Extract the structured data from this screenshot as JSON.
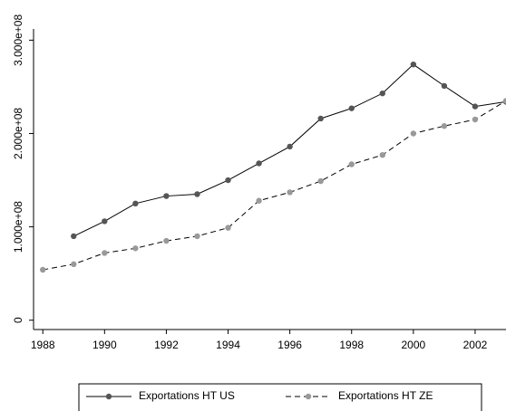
{
  "chart_data": {
    "type": "line",
    "x": [
      1988,
      1989,
      1990,
      1991,
      1992,
      1993,
      1994,
      1995,
      1996,
      1997,
      1998,
      1999,
      2000,
      2001,
      2002,
      2003
    ],
    "series": [
      {
        "name": "Exportations HT US",
        "color": "#555555",
        "linestyle": "solid",
        "values": [
          null,
          90000000,
          106000000,
          125000000,
          133000000,
          135000000,
          150000000,
          168000000,
          186000000,
          216000000,
          227000000,
          243000000,
          274000000,
          251000000,
          229000000,
          234000000
        ]
      },
      {
        "name": "Exportations HT ZE",
        "color": "#999999",
        "linestyle": "dashed",
        "values": [
          54000000,
          60000000,
          72000000,
          77000000,
          85000000,
          90000000,
          99000000,
          128000000,
          137000000,
          149000000,
          167000000,
          177000000,
          200000000,
          208000000,
          215000000,
          235000000
        ]
      }
    ],
    "xlim": [
      1987.7,
      2003
    ],
    "xticks": [
      1988,
      1990,
      1992,
      1994,
      1996,
      1998,
      2000,
      2002
    ],
    "ylim": [
      -10000000,
      312000000
    ],
    "yticks": [
      0,
      {
        "value": 100000000,
        "label": "1.000e+08"
      },
      {
        "value": 200000000,
        "label": "2.000e+08"
      },
      {
        "value": 300000000,
        "label": "3.000e+08"
      }
    ],
    "grid": false,
    "legend": "bottom"
  }
}
